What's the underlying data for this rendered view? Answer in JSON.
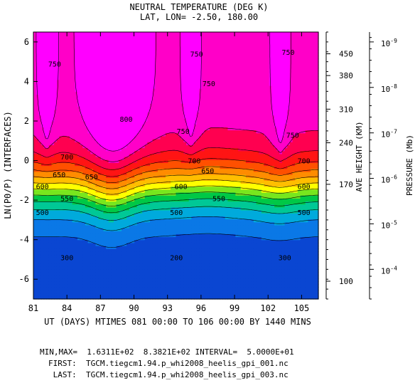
{
  "chart_data": {
    "type": "contour",
    "title": "NEUTRAL TEMPERATURE (DEG K)",
    "subtitle": "LAT, LON= -2.50,   180.00",
    "xlabel": "UT (DAYS) MTIMES 081 00:00 TO 106 00:00 BY 1440 MINS",
    "ylabel": "LN(P0/P) (INTERFACES)",
    "right_label_1": "AVE HEIGHT (KM)",
    "right_label_2": "PRESSURE (Mb)",
    "xlim": [
      81,
      106.5
    ],
    "ylim": [
      -7,
      6.5
    ],
    "x_ticks": [
      "81",
      "84",
      "87",
      "90",
      "93",
      "96",
      "99",
      "102",
      "105"
    ],
    "x_tick_values": [
      81,
      84,
      87,
      90,
      93,
      96,
      99,
      102,
      105
    ],
    "y_ticks": [
      "6",
      "4",
      "2",
      "0",
      "-2",
      "-4",
      "-6"
    ],
    "y_tick_values": [
      6,
      4,
      2,
      0,
      -2,
      -4,
      -6
    ],
    "height_ticks": [
      "450",
      "380",
      "310",
      "240",
      "170",
      "100"
    ],
    "height_tick_zp": [
      5.4,
      4.3,
      2.6,
      0.9,
      -1.2,
      -6.1
    ],
    "pressure_ticks": [
      {
        "base": "10",
        "exp": "-9",
        "zp": 6.0
      },
      {
        "base": "10",
        "exp": "-8",
        "zp": 3.7
      },
      {
        "base": "10",
        "exp": "-7",
        "zp": 1.4
      },
      {
        "base": "10",
        "exp": "-6",
        "zp": -0.9
      },
      {
        "base": "10",
        "exp": "-5",
        "zp": -3.2
      },
      {
        "base": "10",
        "exp": "-4",
        "zp": -5.5
      }
    ],
    "contour_levels": [
      200,
      250,
      300,
      350,
      400,
      450,
      500,
      550,
      600,
      650,
      700,
      750,
      800
    ],
    "level_colors": [
      "#0a46d2",
      "#0a78e6",
      "#00aadc",
      "#00c896",
      "#00c846",
      "#78e61e",
      "#ffff00",
      "#ffbe00",
      "#ff8c00",
      "#ff5000",
      "#ff1414",
      "#ff0050",
      "#ff00c8",
      "#ff00ff"
    ],
    "min": 163.11,
    "max": 838.21,
    "interval": 50
  },
  "footer": {
    "minmax": "MIN,MAX=  1.6311E+02  8.3821E+02 INTERVAL=  5.0000E+01",
    "first": "FIRST:  TGCM.tiegcm1.94.p_whi2008_heelis_gpi_001.nc",
    "last": " LAST:  TGCM.tiegcm1.94.p_whi2008_heelis_gpi_003.nc"
  }
}
